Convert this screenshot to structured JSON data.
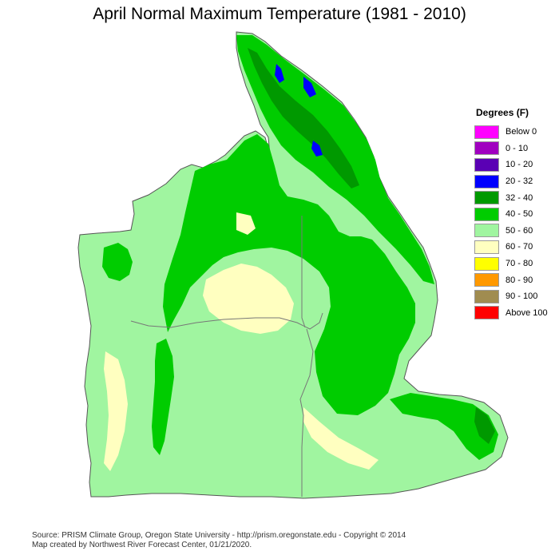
{
  "map": {
    "title": "April Normal Maximum Temperature (1981 - 2010)"
  },
  "legend": {
    "title": "Degrees (F)",
    "items": [
      {
        "label": "Below 0",
        "color": "#ff00ff"
      },
      {
        "label": "0 - 10",
        "color": "#a000c0"
      },
      {
        "label": "10 - 20",
        "color": "#5a00b4"
      },
      {
        "label": "20 - 32",
        "color": "#0000ff"
      },
      {
        "label": "32 - 40",
        "color": "#009900"
      },
      {
        "label": "40 - 50",
        "color": "#00cc00"
      },
      {
        "label": "50 - 60",
        "color": "#a0f5a0"
      },
      {
        "label": "60 - 70",
        "color": "#ffffc0"
      },
      {
        "label": "70 - 80",
        "color": "#ffff00"
      },
      {
        "label": "80 - 90",
        "color": "#ff9900"
      },
      {
        "label": "90 - 100",
        "color": "#a08c50"
      },
      {
        "label": "Above 100",
        "color": "#ff0000"
      }
    ]
  },
  "footer": {
    "source": "Source: PRISM Climate Group, Oregon State University - http://prism.oregonstate.edu - Copyright © 2014",
    "credit": "Map created by Northwest River Forecast Center, 01/21/2020."
  }
}
